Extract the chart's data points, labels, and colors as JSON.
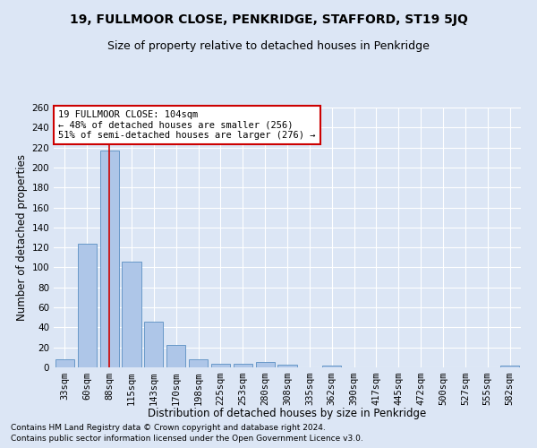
{
  "title": "19, FULLMOOR CLOSE, PENKRIDGE, STAFFORD, ST19 5JQ",
  "subtitle": "Size of property relative to detached houses in Penkridge",
  "xlabel": "Distribution of detached houses by size in Penkridge",
  "ylabel": "Number of detached properties",
  "categories": [
    "33sqm",
    "60sqm",
    "88sqm",
    "115sqm",
    "143sqm",
    "170sqm",
    "198sqm",
    "225sqm",
    "253sqm",
    "280sqm",
    "308sqm",
    "335sqm",
    "362sqm",
    "390sqm",
    "417sqm",
    "445sqm",
    "472sqm",
    "500sqm",
    "527sqm",
    "555sqm",
    "582sqm"
  ],
  "values": [
    8,
    124,
    217,
    106,
    46,
    22,
    8,
    4,
    4,
    5,
    3,
    0,
    2,
    0,
    0,
    0,
    0,
    0,
    0,
    0,
    2
  ],
  "bar_color": "#aec6e8",
  "bar_edge_color": "#5a8fc2",
  "vline_x_index": 2,
  "vline_color": "#cc0000",
  "ylim": [
    0,
    260
  ],
  "yticks": [
    0,
    20,
    40,
    60,
    80,
    100,
    120,
    140,
    160,
    180,
    200,
    220,
    240,
    260
  ],
  "annotation_text": "19 FULLMOOR CLOSE: 104sqm\n← 48% of detached houses are smaller (256)\n51% of semi-detached houses are larger (276) →",
  "annotation_box_color": "#ffffff",
  "annotation_box_edge": "#cc0000",
  "footnote1": "Contains HM Land Registry data © Crown copyright and database right 2024.",
  "footnote2": "Contains public sector information licensed under the Open Government Licence v3.0.",
  "bg_color": "#dce6f5",
  "plot_bg_color": "#dce6f5",
  "grid_color": "#ffffff",
  "title_fontsize": 10,
  "subtitle_fontsize": 9,
  "axis_label_fontsize": 8.5,
  "tick_fontsize": 7.5,
  "annotation_fontsize": 7.5,
  "footnote_fontsize": 6.5
}
